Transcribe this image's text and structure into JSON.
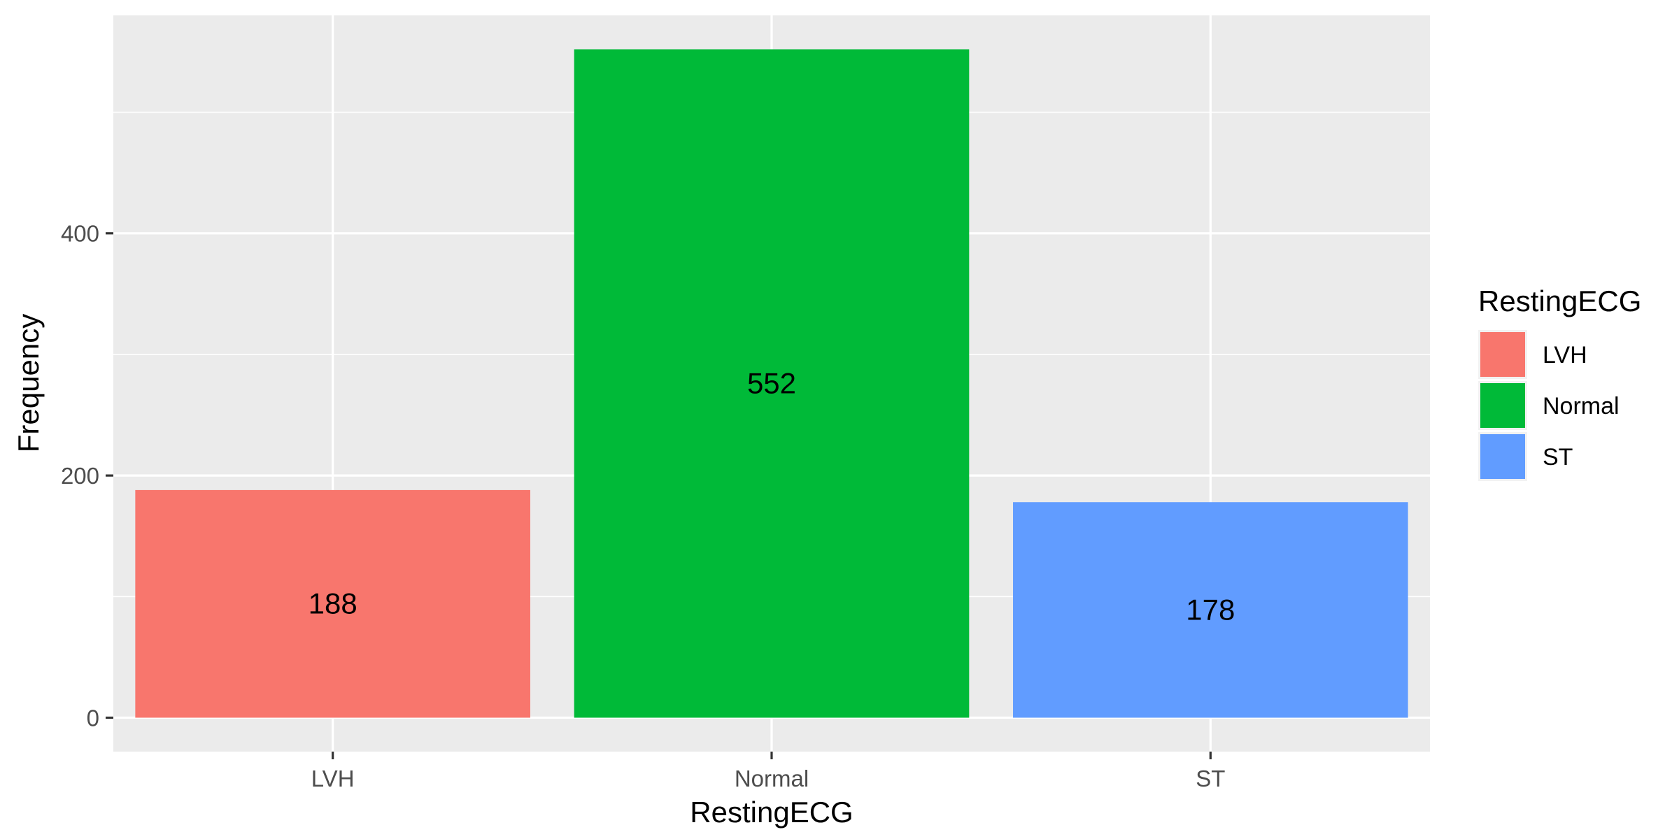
{
  "chart_data": {
    "type": "bar",
    "categories": [
      "LVH",
      "Normal",
      "ST"
    ],
    "values": [
      188,
      552,
      178
    ],
    "data_labels": [
      "188",
      "552",
      "178"
    ],
    "colors": [
      "#F8766D",
      "#00BA38",
      "#619CFF"
    ],
    "xlabel": "RestingECG",
    "ylabel": "Frequency",
    "y_ticks": [
      0,
      200,
      400
    ],
    "y_tick_labels": [
      "0",
      "200",
      "400"
    ],
    "ylim": [
      -28,
      580
    ],
    "grid": true,
    "panel_background": "#EBEBEB",
    "grid_color": "#FFFFFF",
    "legend": {
      "title": "RestingECG",
      "position": "right",
      "items": [
        "LVH",
        "Normal",
        "ST"
      ]
    }
  }
}
